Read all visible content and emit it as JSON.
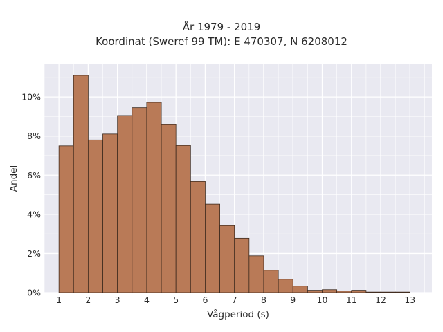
{
  "chart_data": {
    "type": "bar",
    "title": "År 1979 - 2019",
    "subtitle": "Koordinat (Sweref 99 TM): E 470307, N 6208012",
    "xlabel": "Vågperiod (s)",
    "ylabel": "Andel",
    "xlim": [
      0.5,
      13.75
    ],
    "ylim": [
      0,
      0.117
    ],
    "x_ticks": [
      "1",
      "2",
      "3",
      "4",
      "5",
      "6",
      "7",
      "8",
      "9",
      "10",
      "11",
      "12",
      "13"
    ],
    "y_ticks": [
      "0%",
      "2%",
      "4%",
      "6%",
      "8%",
      "10%"
    ],
    "bin_edges": [
      1.0,
      1.5,
      2.0,
      2.5,
      3.0,
      3.5,
      4.0,
      4.5,
      5.0,
      5.5,
      6.0,
      6.5,
      7.0,
      7.5,
      8.0,
      8.5,
      9.0,
      9.5,
      10.0,
      10.5,
      11.0,
      11.5,
      12.0,
      12.5,
      13.0
    ],
    "values": [
      0.075,
      0.111,
      0.078,
      0.081,
      0.0905,
      0.0945,
      0.0972,
      0.0858,
      0.0752,
      0.0568,
      0.0452,
      0.0342,
      0.0278,
      0.0188,
      0.0114,
      0.0068,
      0.0033,
      0.0012,
      0.0015,
      0.0008,
      0.0012,
      0.0003,
      0.0003,
      0.0003
    ],
    "grid": true,
    "colors": {
      "bar_fill": "#b97a57",
      "bar_edge": "#3d2a1e",
      "plot_background": "#e9e9f1",
      "grid": "#ffffff"
    }
  }
}
